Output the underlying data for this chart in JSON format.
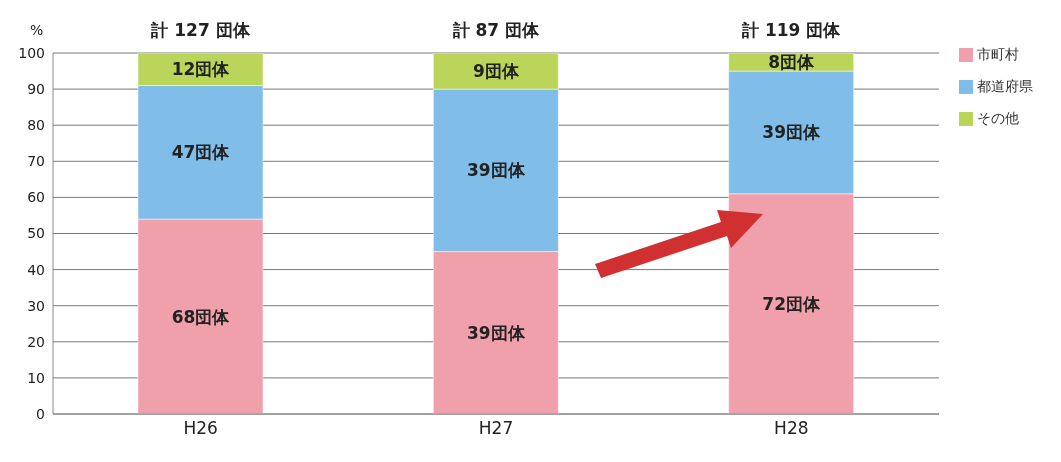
{
  "chart_data": {
    "type": "bar",
    "stacked": true,
    "categories": [
      "H26",
      "H27",
      "H28"
    ],
    "ylabel": "%",
    "ylim": [
      0,
      100
    ],
    "yticks": [
      0,
      10,
      20,
      30,
      40,
      50,
      60,
      70,
      80,
      90,
      100
    ],
    "grid": "y",
    "legend": "top right",
    "series": [
      {
        "name": "市町村",
        "color": "#f0a0aa",
        "values": [
          54,
          45,
          61
        ]
      },
      {
        "name": "都道府県",
        "color": "#80bde8",
        "values": [
          37,
          45,
          34
        ]
      },
      {
        "name": "その他",
        "color": "#bad55a",
        "values": [
          9,
          10,
          5
        ]
      }
    ],
    "annotations": [
      "68団体",
      "47団体",
      "12団体",
      "39団体",
      "39団体",
      "9団体",
      "72団体",
      "39団体",
      "8団体"
    ],
    "totals": [
      "計 127 団体",
      "計 87 団体",
      "計 119 団体"
    ]
  }
}
